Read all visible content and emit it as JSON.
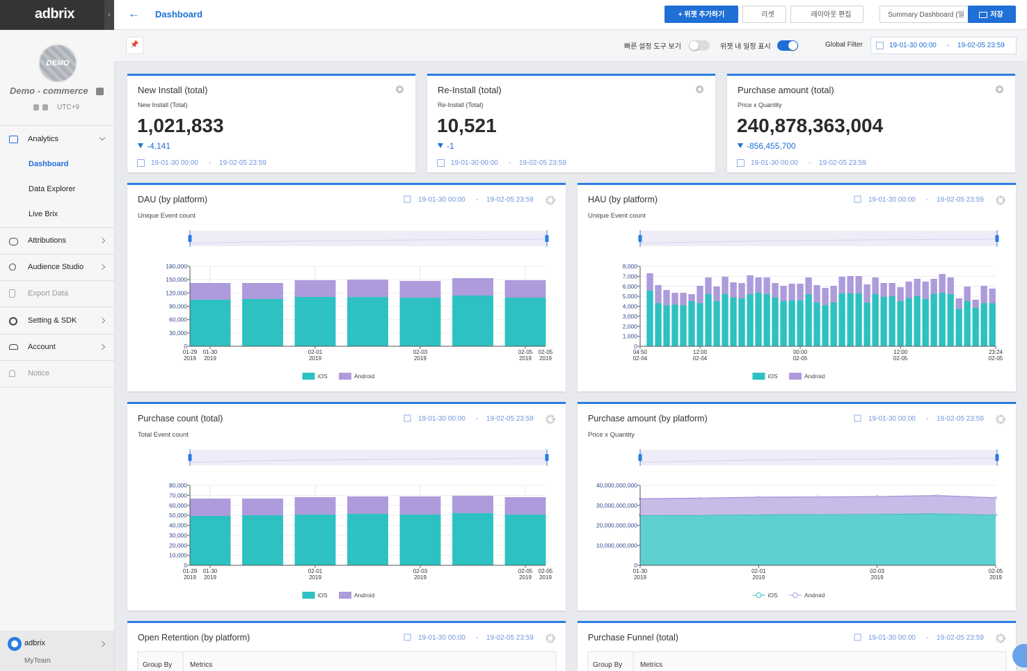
{
  "sidebar": {
    "logo": "adbrix",
    "avatar": "DEMO",
    "app_name": "Demo - commerce",
    "timezone": "UTC+9",
    "menu": [
      {
        "label": "Analytics",
        "children": [
          "Dashboard",
          "Data Explorer",
          "Live Brix"
        ]
      },
      {
        "label": "Attributions"
      },
      {
        "label": "Audience Studio"
      },
      {
        "label": "Export Data"
      },
      {
        "label": "Setting & SDK"
      },
      {
        "label": "Account"
      },
      {
        "label": "Notice"
      }
    ],
    "team": {
      "name": "adbrix",
      "sub": "MyTeam"
    }
  },
  "topbar": {
    "title": "Dashboard",
    "buttons": [
      "+ 위젯 추가하기",
      "리셋",
      "레이아웃 편집"
    ],
    "dashboard_select": "Summary Dashboard (일",
    "save": "저장"
  },
  "filterbar": {
    "quick_tools": "빠른 설정 도구 보기",
    "show_dates": "위젯 내 일정 표시",
    "global_filter": "Global Filter",
    "start": "19-01-30 00:00",
    "sep": "-",
    "end": "19-02-05 23:59"
  },
  "kpis": [
    {
      "title": "New Install (total)",
      "subtitle": "New Install (Total)",
      "value": "1,021,833",
      "delta": "-4,141",
      "start": "19-01-30 00:00",
      "sep": "-",
      "end": "19-02-05 23:59"
    },
    {
      "title": "Re-Install (total)",
      "subtitle": "Re-Install (Total)",
      "value": "10,521",
      "delta": "-1",
      "start": "19-01-30 00:00",
      "sep": "-",
      "end": "19-02-05 23:59"
    },
    {
      "title": "Purchase amount (total)",
      "subtitle": "Price x Quantity",
      "value": "240,878,363,004",
      "delta": "-856,455,700",
      "start": "19-01-30 00:00",
      "sep": "-",
      "end": "19-02-05 23:59"
    }
  ],
  "charts": [
    {
      "type": "bar",
      "title": "DAU (by platform)",
      "subtitle": "Unique Event count",
      "start": "19-01-30 00:00",
      "sep": "-",
      "end": "19-02-05 23:59",
      "categories": [
        "01-30\n2019",
        null,
        "02-01\n2019",
        null,
        "02-03\n2019",
        null,
        "02-05\n2019"
      ],
      "xlim_labels": [
        "01-29\n2019",
        "02-05\n2019"
      ],
      "series": [
        {
          "name": "iOS",
          "color": "#2ec1c1",
          "values": [
            105000,
            106400,
            111100,
            111000,
            109500,
            114300,
            109600
          ]
        },
        {
          "name": "Android",
          "color": "#ad9bdb",
          "values": [
            37400,
            36000,
            37600,
            39000,
            37600,
            39100,
            39100
          ]
        }
      ],
      "ylim": [
        0,
        180000
      ],
      "yticks": [
        0,
        {
          "value": 30000,
          "label": "30,000"
        },
        {
          "value": 60000,
          "label": "60,000"
        },
        {
          "value": 90000,
          "label": "90,000"
        },
        {
          "value": 120000,
          "label": "120,000"
        },
        {
          "value": 150000,
          "label": "150,000"
        },
        {
          "value": 180000,
          "label": "180,000"
        }
      ]
    },
    {
      "type": "bar",
      "title": "HAU (by platform)",
      "subtitle": "Unique Event count",
      "start": "19-01-30 00:00",
      "sep": "-",
      "end": "19-02-05 23:59",
      "x": [
        "02-04 06:00",
        "02-04 07:00",
        "02-04 08:00",
        "02-04 09:00",
        "02-04 10:00",
        "02-04 11:00",
        "02-04 12:00",
        "02-04 13:00",
        "02-04 14:00",
        "02-04 15:00",
        "02-04 16:00",
        "02-04 17:00",
        "02-04 18:00",
        "02-04 19:00",
        "02-04 20:00",
        "02-04 21:00",
        "02-04 22:00",
        "02-04 23:00",
        "02-05 00:00",
        "02-05 01:00",
        "02-05 02:00",
        "02-05 03:00",
        "02-05 04:00",
        "02-05 05:00",
        "02-05 06:00",
        "02-05 07:00",
        "02-05 08:00",
        "02-05 09:00",
        "02-05 10:00",
        "02-05 11:00",
        "02-05 12:00",
        "02-05 13:00",
        "02-05 14:00",
        "02-05 15:00",
        "02-05 16:00",
        "02-05 17:00",
        "02-05 18:00",
        "02-05 19:00",
        "02-05 20:00",
        "02-05 21:00",
        "02-05 22:00",
        "02-05 23:00"
      ],
      "xlim": [
        "02-04 04:50",
        "02-05 23:24"
      ],
      "xticks": [
        {
          "value": "02-04 04:50",
          "label": "04:50\n02-04"
        },
        {
          "value": "02-04 12:00",
          "label": "12:00\n02-04"
        },
        {
          "value": "02-05 00:00",
          "label": "00:00\n02-05"
        },
        {
          "value": "02-05 12:00",
          "label": "12:00\n02-05"
        },
        {
          "value": "02-05 23:24",
          "label": "23:24\n02-05"
        }
      ],
      "series": [
        {
          "name": "iOS",
          "color": "#2ec1c1",
          "values": [
            5570,
            4310,
            4100,
            4170,
            4100,
            4520,
            4310,
            5220,
            4520,
            5220,
            4870,
            4800,
            5220,
            5360,
            5220,
            4870,
            4520,
            4590,
            4590,
            5220,
            4380,
            4100,
            4380,
            5290,
            5290,
            5290,
            4380,
            5220,
            4940,
            5010,
            4520,
            4800,
            5010,
            4730,
            5220,
            5360,
            5220,
            3760,
            4520,
            3830,
            4310,
            4310
          ]
        },
        {
          "name": "Android",
          "color": "#ad9bdb",
          "values": [
            1740,
            1810,
            1530,
            1180,
            1250,
            700,
            1740,
            1670,
            1460,
            1740,
            1530,
            1530,
            1880,
            1530,
            1670,
            1460,
            1530,
            1670,
            1670,
            1670,
            1740,
            1740,
            1670,
            1670,
            1740,
            1740,
            1810,
            1670,
            1390,
            1320,
            1390,
            1670,
            1740,
            1740,
            1530,
            1880,
            1670,
            1040,
            1460,
            830,
            1740,
            1460
          ]
        }
      ],
      "ylim": [
        0,
        8000
      ],
      "yticks": [
        0,
        {
          "value": 1000,
          "label": "1,000"
        },
        {
          "value": 2000,
          "label": "2,000"
        },
        {
          "value": 3000,
          "label": "3,000"
        },
        {
          "value": 4000,
          "label": "4,000"
        },
        {
          "value": 5000,
          "label": "5,000"
        },
        {
          "value": 6000,
          "label": "6,000"
        },
        {
          "value": 7000,
          "label": "7,000"
        },
        {
          "value": 8000,
          "label": "8,000"
        }
      ]
    },
    {
      "type": "bar",
      "title": "Purchase count (total)",
      "subtitle": "Total Event count",
      "start": "19-01-30 00:00",
      "sep": "-",
      "end": "19-02-05 23:59",
      "categories": [
        "01-30\n2019",
        null,
        "02-01\n2019",
        null,
        "02-03\n2019",
        null,
        "02-05\n2019"
      ],
      "xlim_labels": [
        "01-29\n2019",
        "02-05\n2019"
      ],
      "series": [
        {
          "name": "iOS",
          "color": "#2ec1c1",
          "values": [
            49400,
            50100,
            50800,
            51500,
            50800,
            52200,
            50800
          ]
        },
        {
          "name": "Android",
          "color": "#ad9bdb",
          "values": [
            17400,
            16700,
            17400,
            17400,
            18100,
            17400,
            17400
          ]
        }
      ],
      "ylim": [
        0,
        80000
      ],
      "yticks": [
        0,
        {
          "value": 10000,
          "label": "10,000"
        },
        {
          "value": 20000,
          "label": "20,000"
        },
        {
          "value": 30000,
          "label": "30,000"
        },
        {
          "value": 40000,
          "label": "40,000"
        },
        {
          "value": 50000,
          "label": "50,000"
        },
        {
          "value": 60000,
          "label": "60,000"
        },
        {
          "value": 70000,
          "label": "70,000"
        },
        {
          "value": 80000,
          "label": "80,000"
        }
      ]
    },
    {
      "type": "area",
      "title": "Purchase amount (by platform)",
      "subtitle": "Price x Quantity",
      "start": "19-01-30 00:00",
      "sep": "-",
      "end": "19-02-05 23:59",
      "categories": [
        "01-30\n2019",
        null,
        "02-01\n2019",
        null,
        "02-03\n2019",
        null,
        "02-05\n2019"
      ],
      "series": [
        {
          "name": "iOS",
          "color": "#2ec1c1",
          "values": [
            25000000000,
            25100000000,
            25400000000,
            25500000000,
            25600000000,
            25900000000,
            25200000000
          ]
        },
        {
          "name": "Android",
          "color": "#ad9bdb",
          "values": [
            8300000000,
            8500000000,
            8700000000,
            8700000000,
            8800000000,
            9000000000,
            8600000000
          ]
        }
      ],
      "ylim": [
        0,
        40000000000
      ],
      "yticks": [
        0,
        {
          "value": 10000000000,
          "label": "10,000,000,000"
        },
        {
          "value": 20000000000,
          "label": "20,000,000,000"
        },
        {
          "value": 30000000000,
          "label": "30,000,000,000"
        },
        {
          "value": 40000000000,
          "label": "40,000,000,000"
        }
      ]
    }
  ],
  "tables": [
    {
      "title": "Open Retention (by platform)",
      "start": "19-01-30 00:00",
      "sep": "-",
      "end": "19-02-05 23:59",
      "columns": [
        "Group By",
        "Metrics"
      ]
    },
    {
      "title": "Purchase Funnel (total)",
      "start": "19-01-30 00:00",
      "sep": "-",
      "end": "19-02-05 23:59",
      "columns": [
        "Group By",
        "Metrics"
      ]
    }
  ]
}
